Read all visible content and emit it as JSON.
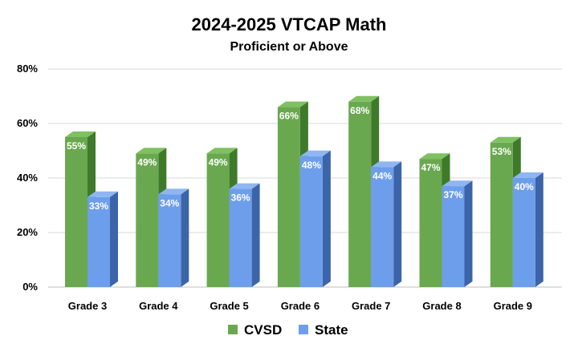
{
  "chart_data": {
    "type": "bar",
    "title": "2024-2025 VTCAP Math",
    "subtitle": "Proficient or Above",
    "categories": [
      "Grade 3",
      "Grade 4",
      "Grade 5",
      "Grade 6",
      "Grade 7",
      "Grade 8",
      "Grade 9"
    ],
    "series": [
      {
        "name": "CVSD",
        "values": [
          55,
          49,
          49,
          66,
          68,
          47,
          53
        ],
        "labels": [
          "55%",
          "49%",
          "49%",
          "66%",
          "68%",
          "47%",
          "53%"
        ],
        "color": "#6aa84f",
        "top_color": "#7fc061",
        "side_color": "#3f7a2a"
      },
      {
        "name": "State",
        "values": [
          33,
          34,
          36,
          48,
          44,
          37,
          40
        ],
        "labels": [
          "33%",
          "34%",
          "36%",
          "48%",
          "44%",
          "37%",
          "40%"
        ],
        "color": "#6d9eeb",
        "top_color": "#8fb6f1",
        "side_color": "#3c64a8"
      }
    ],
    "yticks": [
      0,
      20,
      40,
      60,
      80
    ],
    "ytick_labels": [
      "0%",
      "20%",
      "40%",
      "60%",
      "80%"
    ],
    "ylim": [
      0,
      80
    ],
    "xlabel": "",
    "ylabel": "",
    "grid": true,
    "legend_position": "bottom"
  }
}
